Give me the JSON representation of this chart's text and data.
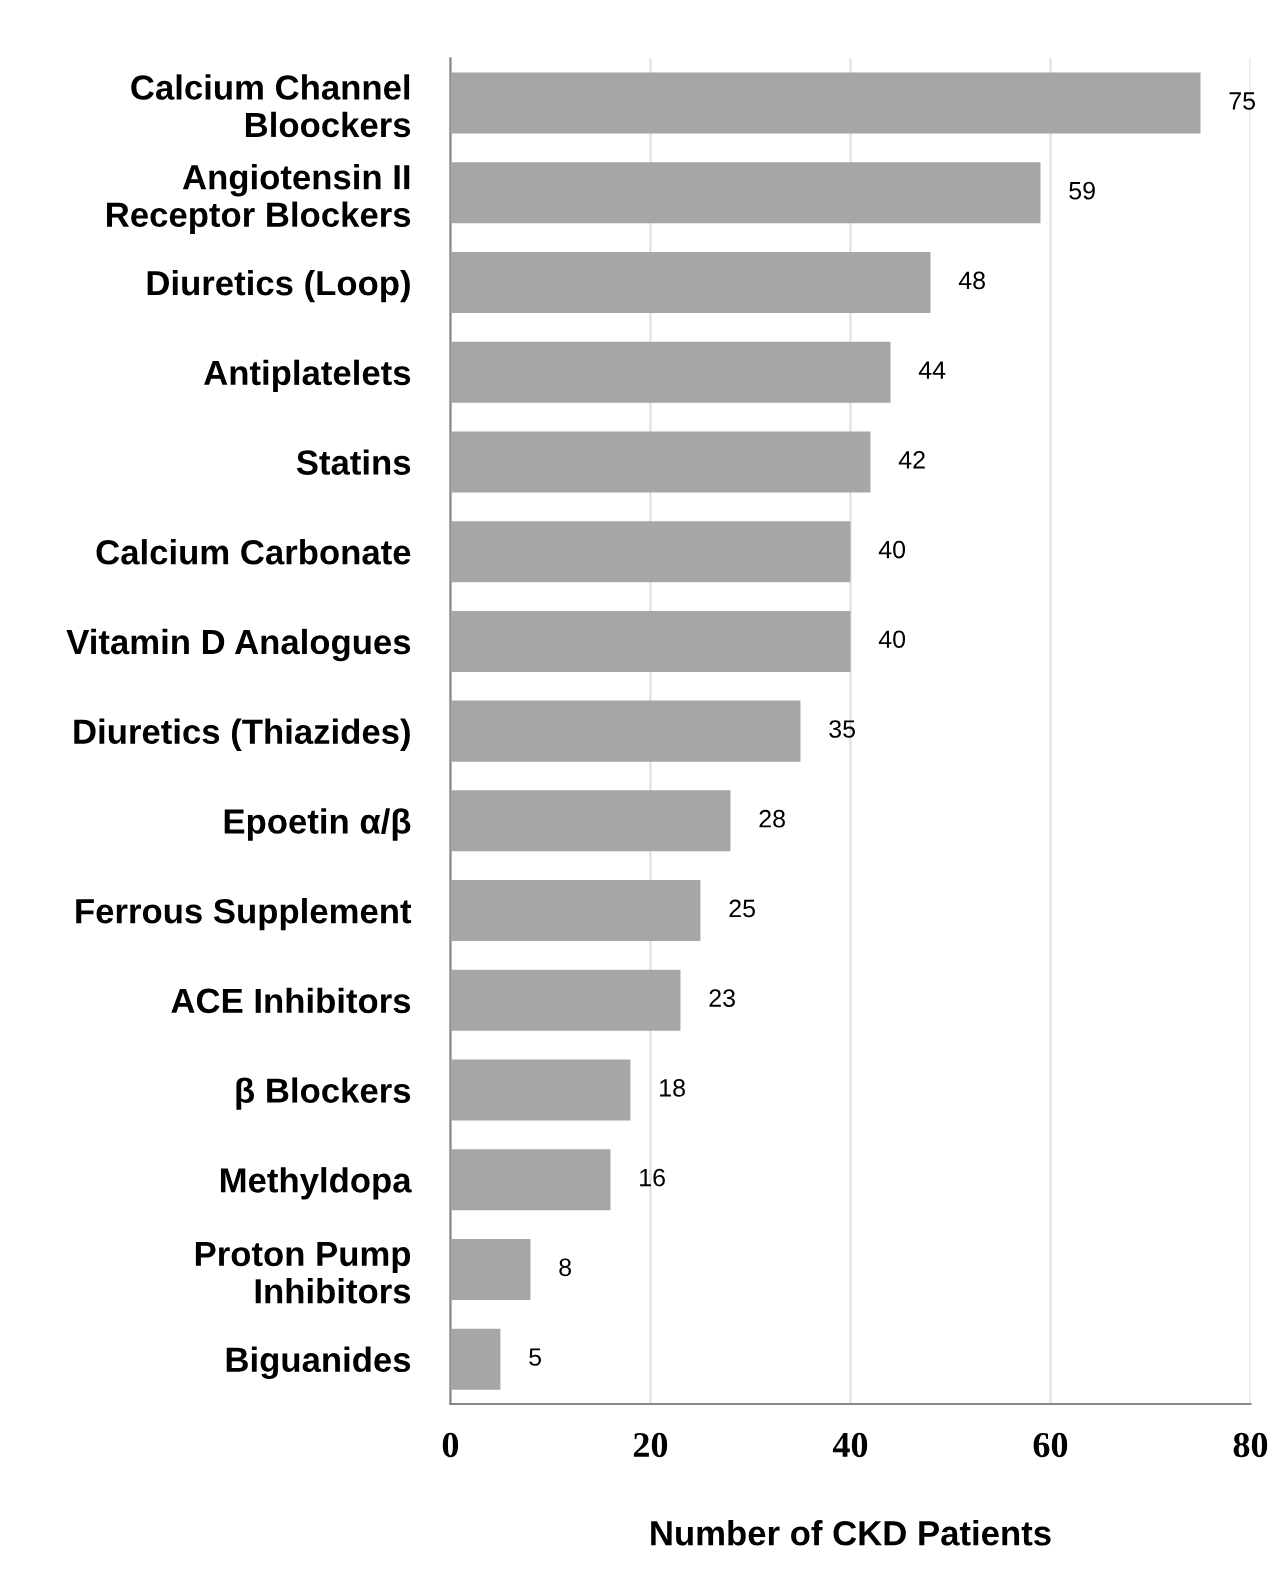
{
  "chart_data": {
    "type": "bar",
    "orientation": "horizontal",
    "xlabel": "Number of CKD Patients",
    "categories": [
      "Calcium Channel\nBloockers",
      "Angiotensin II\nReceptor Blockers",
      "Diuretics (Loop)",
      "Antiplatelets",
      "Statins",
      "Calcium Carbonate",
      "Vitamin D Analogues",
      "Diuretics (Thiazides)",
      "Epoetin α/β",
      "Ferrous Supplement",
      "ACE Inhibitors",
      "β Blockers",
      "Methyldopa",
      "Proton Pump\nInhibitors",
      "Biguanides"
    ],
    "values": [
      75,
      59,
      48,
      44,
      42,
      40,
      40,
      35,
      28,
      25,
      23,
      18,
      16,
      8,
      5
    ],
    "color": "#a6a6a6",
    "xlim": [
      0,
      80
    ],
    "xticks": [
      0,
      20,
      40,
      60,
      80
    ],
    "grid": "x",
    "data_labels": true,
    "legend": false
  }
}
